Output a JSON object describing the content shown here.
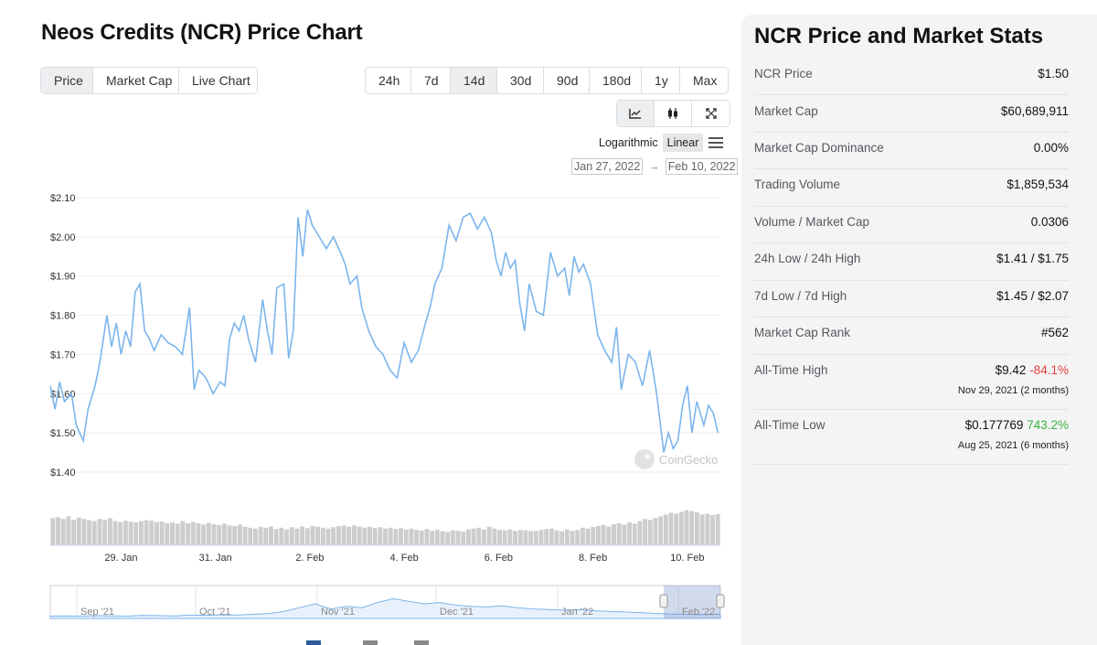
{
  "title": "Neos Credits (NCR) Price Chart",
  "type_tabs": [
    {
      "label": "Price",
      "active": true
    },
    {
      "label": "Market Cap",
      "active": false
    },
    {
      "label": "Live Chart",
      "active": false
    }
  ],
  "ranges": [
    {
      "label": "24h",
      "active": false
    },
    {
      "label": "7d",
      "active": false
    },
    {
      "label": "14d",
      "active": true
    },
    {
      "label": "30d",
      "active": false
    },
    {
      "label": "90d",
      "active": false
    },
    {
      "label": "180d",
      "active": false
    },
    {
      "label": "1y",
      "active": false
    },
    {
      "label": "Max",
      "active": false
    }
  ],
  "tools": [
    {
      "icon": "line-chart-icon",
      "active": true
    },
    {
      "icon": "candlestick-icon",
      "active": false
    },
    {
      "icon": "fullscreen-icon",
      "active": false
    }
  ],
  "scale": {
    "logarithmic": "Logarithmic",
    "linear": "Linear",
    "active": "linear"
  },
  "date_range": {
    "from": "Jan 27, 2022",
    "arrow": "→",
    "to": "Feb 10, 2022"
  },
  "watermark": "CoinGecko",
  "chart_data": {
    "type": "line",
    "ylim": [
      1.4,
      2.1
    ],
    "ytick_labels": [
      "$2.10",
      "$2.00",
      "$1.90",
      "$1.80",
      "$1.70",
      "$1.60",
      "$1.50",
      "$1.40"
    ],
    "ytick_values": [
      2.1,
      2.0,
      1.9,
      1.8,
      1.7,
      1.6,
      1.5,
      1.4
    ],
    "xlim": [
      0,
      14.2
    ],
    "xtick_labels": [
      "29. Jan",
      "31. Jan",
      "2. Feb",
      "4. Feb",
      "6. Feb",
      "8. Feb",
      "10. Feb"
    ],
    "xtick_values": [
      1.5,
      3.5,
      5.5,
      7.5,
      9.5,
      11.5,
      13.5
    ],
    "series": [
      {
        "color": "#7cb5ec",
        "x": [
          0,
          0.1,
          0.2,
          0.3,
          0.45,
          0.55,
          0.7,
          0.8,
          0.95,
          1.05,
          1.2,
          1.3,
          1.4,
          1.5,
          1.6,
          1.7,
          1.8,
          1.9,
          2.0,
          2.1,
          2.2,
          2.35,
          2.5,
          2.65,
          2.8,
          2.95,
          3.05,
          3.15,
          3.3,
          3.45,
          3.6,
          3.7,
          3.8,
          3.9,
          4.0,
          4.1,
          4.2,
          4.35,
          4.5,
          4.6,
          4.7,
          4.8,
          4.95,
          5.05,
          5.15,
          5.25,
          5.35,
          5.45,
          5.55,
          5.7,
          5.85,
          6.0,
          6.15,
          6.25,
          6.35,
          6.5,
          6.6,
          6.75,
          6.9,
          7.05,
          7.2,
          7.35,
          7.5,
          7.65,
          7.8,
          7.95,
          8.05,
          8.15,
          8.3,
          8.45,
          8.6,
          8.75,
          8.9,
          9.05,
          9.2,
          9.35,
          9.45,
          9.55,
          9.65,
          9.75,
          9.85,
          9.95,
          10.05,
          10.15,
          10.3,
          10.45,
          10.6,
          10.75,
          10.9,
          11.0,
          11.1,
          11.2,
          11.3,
          11.45,
          11.6,
          11.75,
          11.9,
          12.0,
          12.1,
          12.25,
          12.4,
          12.55,
          12.7,
          12.85,
          13.0,
          13.1,
          13.2,
          13.3,
          13.4,
          13.5,
          13.6,
          13.7,
          13.85,
          13.95,
          14.05,
          14.15
        ],
        "values": [
          1.62,
          1.56,
          1.63,
          1.58,
          1.6,
          1.52,
          1.48,
          1.56,
          1.62,
          1.68,
          1.8,
          1.72,
          1.78,
          1.7,
          1.76,
          1.72,
          1.86,
          1.88,
          1.76,
          1.74,
          1.71,
          1.75,
          1.73,
          1.72,
          1.7,
          1.82,
          1.61,
          1.66,
          1.64,
          1.6,
          1.63,
          1.62,
          1.74,
          1.78,
          1.76,
          1.8,
          1.74,
          1.68,
          1.84,
          1.76,
          1.7,
          1.87,
          1.88,
          1.69,
          1.76,
          2.05,
          1.95,
          2.07,
          2.03,
          2.0,
          1.97,
          2.0,
          1.96,
          1.93,
          1.88,
          1.9,
          1.82,
          1.76,
          1.72,
          1.7,
          1.66,
          1.64,
          1.73,
          1.68,
          1.71,
          1.78,
          1.82,
          1.88,
          1.92,
          2.03,
          1.99,
          2.05,
          2.06,
          2.02,
          2.05,
          2.01,
          1.94,
          1.9,
          1.96,
          1.92,
          1.94,
          1.83,
          1.76,
          1.88,
          1.81,
          1.8,
          1.96,
          1.9,
          1.92,
          1.85,
          1.95,
          1.91,
          1.93,
          1.88,
          1.75,
          1.71,
          1.68,
          1.77,
          1.61,
          1.7,
          1.68,
          1.62,
          1.71,
          1.6,
          1.45,
          1.5,
          1.46,
          1.48,
          1.57,
          1.62,
          1.5,
          1.58,
          1.52,
          1.57,
          1.55,
          1.5
        ]
      }
    ],
    "volume": [
      0.62,
      0.64,
      0.6,
      0.66,
      0.58,
      0.63,
      0.6,
      0.57,
      0.55,
      0.6,
      0.58,
      0.62,
      0.55,
      0.53,
      0.56,
      0.54,
      0.52,
      0.55,
      0.57,
      0.56,
      0.53,
      0.54,
      0.5,
      0.52,
      0.49,
      0.55,
      0.5,
      0.53,
      0.5,
      0.47,
      0.51,
      0.48,
      0.46,
      0.49,
      0.45,
      0.44,
      0.47,
      0.42,
      0.4,
      0.38,
      0.42,
      0.4,
      0.43,
      0.37,
      0.4,
      0.36,
      0.41,
      0.38,
      0.43,
      0.39,
      0.44,
      0.42,
      0.4,
      0.38,
      0.41,
      0.44,
      0.45,
      0.42,
      0.45,
      0.43,
      0.4,
      0.42,
      0.39,
      0.41,
      0.38,
      0.4,
      0.37,
      0.39,
      0.36,
      0.38,
      0.35,
      0.34,
      0.37,
      0.33,
      0.35,
      0.32,
      0.3,
      0.34,
      0.33,
      0.31,
      0.36,
      0.38,
      0.4,
      0.36,
      0.42,
      0.38,
      0.35,
      0.34,
      0.36,
      0.33,
      0.35,
      0.34,
      0.32,
      0.33,
      0.35,
      0.37,
      0.38,
      0.34,
      0.32,
      0.36,
      0.33,
      0.35,
      0.4,
      0.38,
      0.42,
      0.44,
      0.46,
      0.43,
      0.48,
      0.5,
      0.47,
      0.52,
      0.49,
      0.55,
      0.6,
      0.58,
      0.62,
      0.66,
      0.7,
      0.74,
      0.72,
      0.76,
      0.8,
      0.78,
      0.75,
      0.7,
      0.72,
      0.69,
      0.71
    ]
  },
  "navigator": {
    "labels": [
      "Sep '21",
      "Oct '21",
      "Nov '21",
      "Dec '21",
      "Jan '22",
      "Feb '22"
    ],
    "series": [
      0.02,
      0.03,
      0.02,
      0.04,
      0.03,
      0.02,
      0.05,
      0.04,
      0.03,
      0.06,
      0.05,
      0.07,
      0.06,
      0.09,
      0.12,
      0.2,
      0.35,
      0.5,
      0.3,
      0.4,
      0.35,
      0.55,
      0.7,
      0.6,
      0.5,
      0.55,
      0.45,
      0.4,
      0.38,
      0.42,
      0.35,
      0.3,
      0.28,
      0.25,
      0.27,
      0.22,
      0.2,
      0.18,
      0.15,
      0.12,
      0.1,
      0.09,
      0.08,
      0.1
    ]
  },
  "stats": {
    "title": "NCR Price and Market Stats",
    "rows": [
      {
        "label": "NCR Price",
        "value": "$1.50"
      },
      {
        "label": "Market Cap",
        "value": "$60,689,911"
      },
      {
        "label": "Market Cap Dominance",
        "value": "0.00%"
      },
      {
        "label": "Trading Volume",
        "value": "$1,859,534"
      },
      {
        "label": "Volume / Market Cap",
        "value": "0.0306"
      },
      {
        "label": "24h Low / 24h High",
        "value": "$1.41 / $1.75"
      },
      {
        "label": "7d Low / 7d High",
        "value": "$1.45 / $2.07"
      },
      {
        "label": "Market Cap Rank",
        "value": "#562"
      }
    ],
    "ath": {
      "label": "All-Time High",
      "value": "$9.42",
      "change": "-84.1%",
      "date": "Nov 29, 2021 (2 months)"
    },
    "atl": {
      "label": "All-Time Low",
      "value": "$0.177769",
      "change": "743.2%",
      "date": "Aug 25, 2021 (6 months)"
    }
  },
  "colors": {
    "line": "#7cb5ec",
    "volume": "#cdcdcd",
    "negative": "#e3403f",
    "positive": "#3ab03e"
  }
}
